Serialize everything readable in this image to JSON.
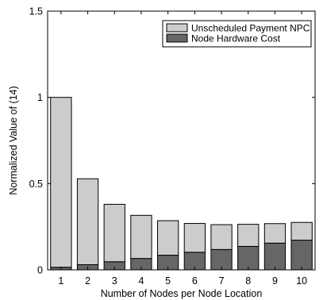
{
  "chart_data": {
    "type": "bar",
    "stacked": true,
    "categories": [
      "1",
      "2",
      "3",
      "4",
      "5",
      "6",
      "7",
      "8",
      "9",
      "10"
    ],
    "series": [
      {
        "name": "Node Hardware Cost",
        "color": "#666666",
        "values": [
          0.015,
          0.03,
          0.047,
          0.066,
          0.085,
          0.102,
          0.118,
          0.136,
          0.155,
          0.172
        ]
      },
      {
        "name": "Unscheduled Payment NPC",
        "color": "#cccccc",
        "values": [
          0.985,
          0.498,
          0.333,
          0.25,
          0.2,
          0.167,
          0.144,
          0.128,
          0.113,
          0.103
        ]
      }
    ],
    "legend_order": [
      "Unscheduled Payment NPC",
      "Node Hardware Cost"
    ],
    "xlabel": "Number of Nodes per Node Location",
    "ylabel": "Normalized Value of (14)",
    "ylim": [
      0,
      1.5
    ],
    "yticks": [
      0,
      0.5,
      1,
      1.5
    ],
    "ytick_labels": [
      "0",
      "0.5",
      "1",
      "1.5"
    ],
    "grid": false,
    "legend_position": "top-right"
  }
}
